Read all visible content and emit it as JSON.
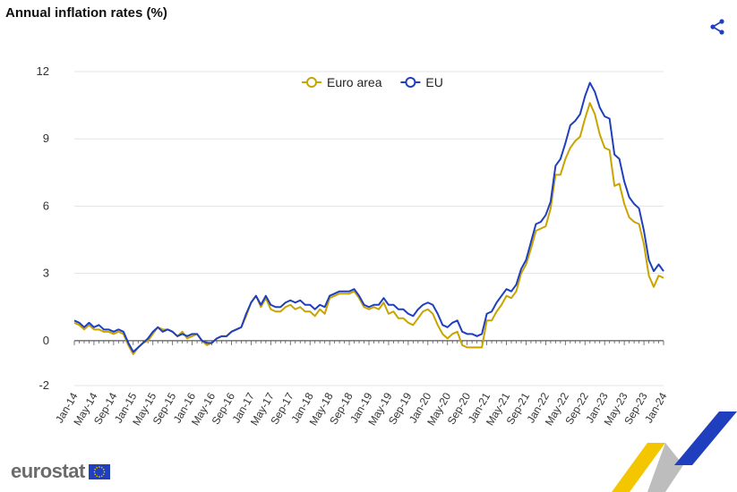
{
  "header": {
    "title": "Annual inflation rates (%)",
    "share_icon": "share-icon"
  },
  "brand": {
    "name": "eurostat",
    "flag_icon": "eu-flag-icon"
  },
  "chart_data": {
    "type": "line",
    "title": "Annual inflation rates (%)",
    "xlabel": "",
    "ylabel": "",
    "ylim": [
      -2,
      12
    ],
    "yticks": [
      -2,
      0,
      3,
      6,
      9,
      12
    ],
    "grid": true,
    "legend": "top-center",
    "x_start": "Jan-14",
    "x_tick_labels": [
      "Jan-14",
      "May-14",
      "Sep-14",
      "Jan-15",
      "May-15",
      "Sep-15",
      "Jan-16",
      "May-16",
      "Sep-16",
      "Jan-17",
      "May-17",
      "Sep-17",
      "Jan-18",
      "May-18",
      "Sep-18",
      "Jan-19",
      "May-19",
      "Sep-19",
      "Jan-20",
      "May-20",
      "Sep-20",
      "Jan-21",
      "May-21",
      "Sep-21",
      "Jan-22",
      "May-22",
      "Sep-22",
      "Jan-23",
      "May-23",
      "Sep-23",
      "Jan-24"
    ],
    "series": [
      {
        "name": "Euro area",
        "color": "#c9a400",
        "values": [
          0.8,
          0.7,
          0.5,
          0.7,
          0.5,
          0.5,
          0.4,
          0.4,
          0.3,
          0.4,
          0.3,
          -0.2,
          -0.6,
          -0.3,
          -0.1,
          0.0,
          0.3,
          0.6,
          0.5,
          0.5,
          0.4,
          0.2,
          0.4,
          0.1,
          0.2,
          0.3,
          0.0,
          -0.2,
          -0.1,
          0.1,
          0.2,
          0.2,
          0.4,
          0.5,
          0.6,
          1.1,
          1.7,
          2.0,
          1.5,
          1.9,
          1.4,
          1.3,
          1.3,
          1.5,
          1.6,
          1.4,
          1.5,
          1.3,
          1.3,
          1.1,
          1.4,
          1.2,
          1.9,
          2.0,
          2.1,
          2.1,
          2.1,
          2.2,
          1.9,
          1.5,
          1.4,
          1.5,
          1.4,
          1.7,
          1.2,
          1.3,
          1.0,
          1.0,
          0.8,
          0.7,
          1.0,
          1.3,
          1.4,
          1.2,
          0.7,
          0.3,
          0.1,
          0.3,
          0.4,
          -0.2,
          -0.3,
          -0.3,
          -0.3,
          -0.3,
          0.9,
          0.9,
          1.3,
          1.6,
          2.0,
          1.9,
          2.2,
          3.0,
          3.4,
          4.1,
          4.9,
          5.0,
          5.1,
          5.9,
          7.4,
          7.4,
          8.1,
          8.6,
          8.9,
          9.1,
          9.9,
          10.6,
          10.1,
          9.2,
          8.6,
          8.5,
          6.9,
          7.0,
          6.1,
          5.5,
          5.3,
          5.2,
          4.3,
          2.9,
          2.4,
          2.9,
          2.8
        ]
      },
      {
        "name": "EU",
        "color": "#1f3fbf",
        "values": [
          0.9,
          0.8,
          0.6,
          0.8,
          0.6,
          0.7,
          0.5,
          0.5,
          0.4,
          0.5,
          0.4,
          -0.1,
          -0.5,
          -0.3,
          -0.1,
          0.1,
          0.4,
          0.6,
          0.4,
          0.5,
          0.4,
          0.2,
          0.3,
          0.2,
          0.3,
          0.3,
          0.0,
          -0.1,
          -0.1,
          0.1,
          0.2,
          0.2,
          0.4,
          0.5,
          0.6,
          1.2,
          1.7,
          2.0,
          1.6,
          2.0,
          1.6,
          1.5,
          1.5,
          1.7,
          1.8,
          1.7,
          1.8,
          1.6,
          1.6,
          1.4,
          1.6,
          1.5,
          2.0,
          2.1,
          2.2,
          2.2,
          2.2,
          2.3,
          2.0,
          1.6,
          1.5,
          1.6,
          1.6,
          1.9,
          1.6,
          1.6,
          1.4,
          1.4,
          1.2,
          1.1,
          1.4,
          1.6,
          1.7,
          1.6,
          1.2,
          0.7,
          0.6,
          0.8,
          0.9,
          0.4,
          0.3,
          0.3,
          0.2,
          0.3,
          1.2,
          1.3,
          1.7,
          2.0,
          2.3,
          2.2,
          2.5,
          3.2,
          3.6,
          4.4,
          5.2,
          5.3,
          5.6,
          6.2,
          7.8,
          8.1,
          8.8,
          9.6,
          9.8,
          10.1,
          10.9,
          11.5,
          11.1,
          10.4,
          10.0,
          9.9,
          8.3,
          8.1,
          7.1,
          6.4,
          6.1,
          5.9,
          4.9,
          3.6,
          3.1,
          3.4,
          3.1
        ]
      }
    ]
  }
}
